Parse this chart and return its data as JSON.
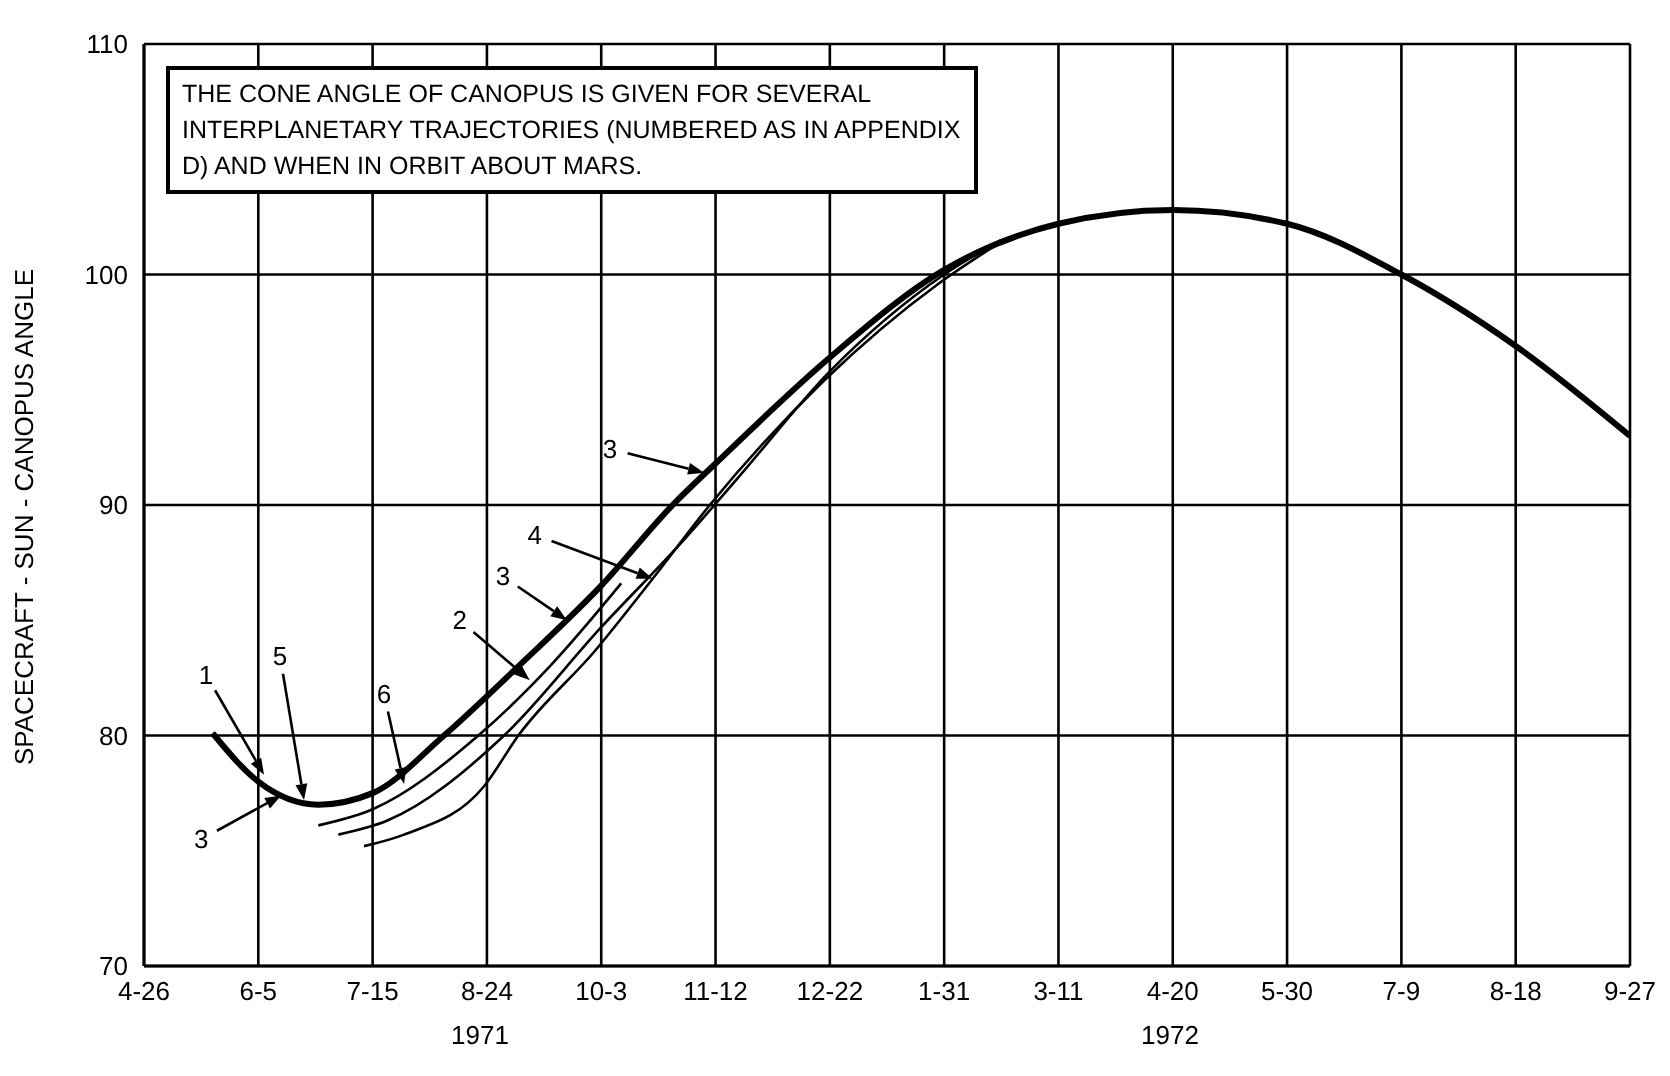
{
  "chart_data": {
    "type": "line",
    "ylabel": "SPACECRAFT - SUN - CANOPUS ANGLE",
    "xlim": [
      "1971-04-26",
      "1972-09-27"
    ],
    "xticks": [
      {
        "value": "1971-04-26",
        "label": "4-26"
      },
      {
        "value": "1971-06-05",
        "label": "6-5"
      },
      {
        "value": "1971-07-15",
        "label": "7-15"
      },
      {
        "value": "1971-08-24",
        "label": "8-24"
      },
      {
        "value": "1971-10-03",
        "label": "10-3"
      },
      {
        "value": "1971-11-12",
        "label": "11-12"
      },
      {
        "value": "1971-12-22",
        "label": "12-22"
      },
      {
        "value": "1972-01-31",
        "label": "1-31"
      },
      {
        "value": "1972-03-11",
        "label": "3-11"
      },
      {
        "value": "1972-04-20",
        "label": "4-20"
      },
      {
        "value": "1972-05-30",
        "label": "5-30"
      },
      {
        "value": "1972-07-09",
        "label": "7-9"
      },
      {
        "value": "1972-08-18",
        "label": "8-18"
      },
      {
        "value": "1972-09-27",
        "label": "9-27"
      }
    ],
    "ylim": [
      70,
      110
    ],
    "yticks": [
      70,
      80,
      90,
      100,
      110
    ],
    "grid": true,
    "legend": false,
    "marker": "none",
    "line_style": "solid",
    "series": [
      {
        "color": "#000000",
        "x": [
          "1971-05-20",
          "1971-06-05",
          "1971-06-26",
          "1971-07-15",
          "1971-08-09",
          "1971-09-04",
          "1971-10-03",
          "1971-10-28",
          "1971-11-12",
          "1971-12-22",
          "1972-01-31",
          "1972-03-11",
          "1972-04-20",
          "1972-05-30",
          "1972-07-09",
          "1972-08-18",
          "1972-09-27"
        ],
        "values": [
          80.1,
          78.0,
          77.0,
          77.5,
          80.0,
          83.0,
          86.5,
          90.0,
          91.8,
          96.4,
          100.2,
          102.2,
          102.8,
          102.2,
          100.0,
          96.9,
          93.0
        ]
      },
      {
        "color": "#000000",
        "x": [
          "1971-06-26",
          "1971-07-15",
          "1971-08-21",
          "1971-09-15",
          "1971-10-10"
        ],
        "values": [
          76.1,
          76.8,
          80.0,
          83.0,
          86.6
        ]
      },
      {
        "color": "#000000",
        "x": [
          "1971-07-03",
          "1971-07-20",
          "1971-08-30",
          "1971-10-03",
          "1971-11-01",
          "1971-11-20",
          "1971-12-22",
          "1972-01-31",
          "1972-02-20"
        ],
        "values": [
          75.7,
          76.3,
          80.0,
          84.7,
          88.5,
          91.2,
          95.8,
          100.0,
          101.5
        ]
      },
      {
        "color": "#000000",
        "x": [
          "1971-07-12",
          "1971-07-26",
          "1971-08-23",
          "1971-09-04",
          "1971-10-01",
          "1971-10-21",
          "1971-11-10",
          "1971-12-20",
          "1972-01-29",
          "1972-02-21"
        ],
        "values": [
          75.2,
          75.7,
          77.8,
          80.0,
          83.7,
          86.8,
          90.0,
          95.4,
          99.6,
          101.5
        ]
      }
    ],
    "annotations": [
      "THE CONE ANGLE OF CANOPUS IS GIVEN FOR SEVERAL INTERPLANETARY TRAJECTORIES (NUMBERED AS IN APPENDIX D) AND WHEN IN ORBIT ABOUT MARS.",
      "1971",
      "1972",
      {
        "text": "1",
        "x": "1971-06-07",
        "y": 78.3
      },
      {
        "text": "5",
        "x": "1971-06-21",
        "y": 77.2
      },
      {
        "text": "3",
        "x": "1971-06-13",
        "y": 77.4
      },
      {
        "text": "6",
        "x": "1971-07-26",
        "y": 77.9
      },
      {
        "text": "2",
        "x": "1971-09-08",
        "y": 82.4
      },
      {
        "text": "3",
        "x": "1971-09-21",
        "y": 85.0
      },
      {
        "text": "4",
        "x": "1971-10-21",
        "y": 86.8
      },
      {
        "text": "3",
        "x": "1971-11-08",
        "y": 91.4
      }
    ]
  }
}
